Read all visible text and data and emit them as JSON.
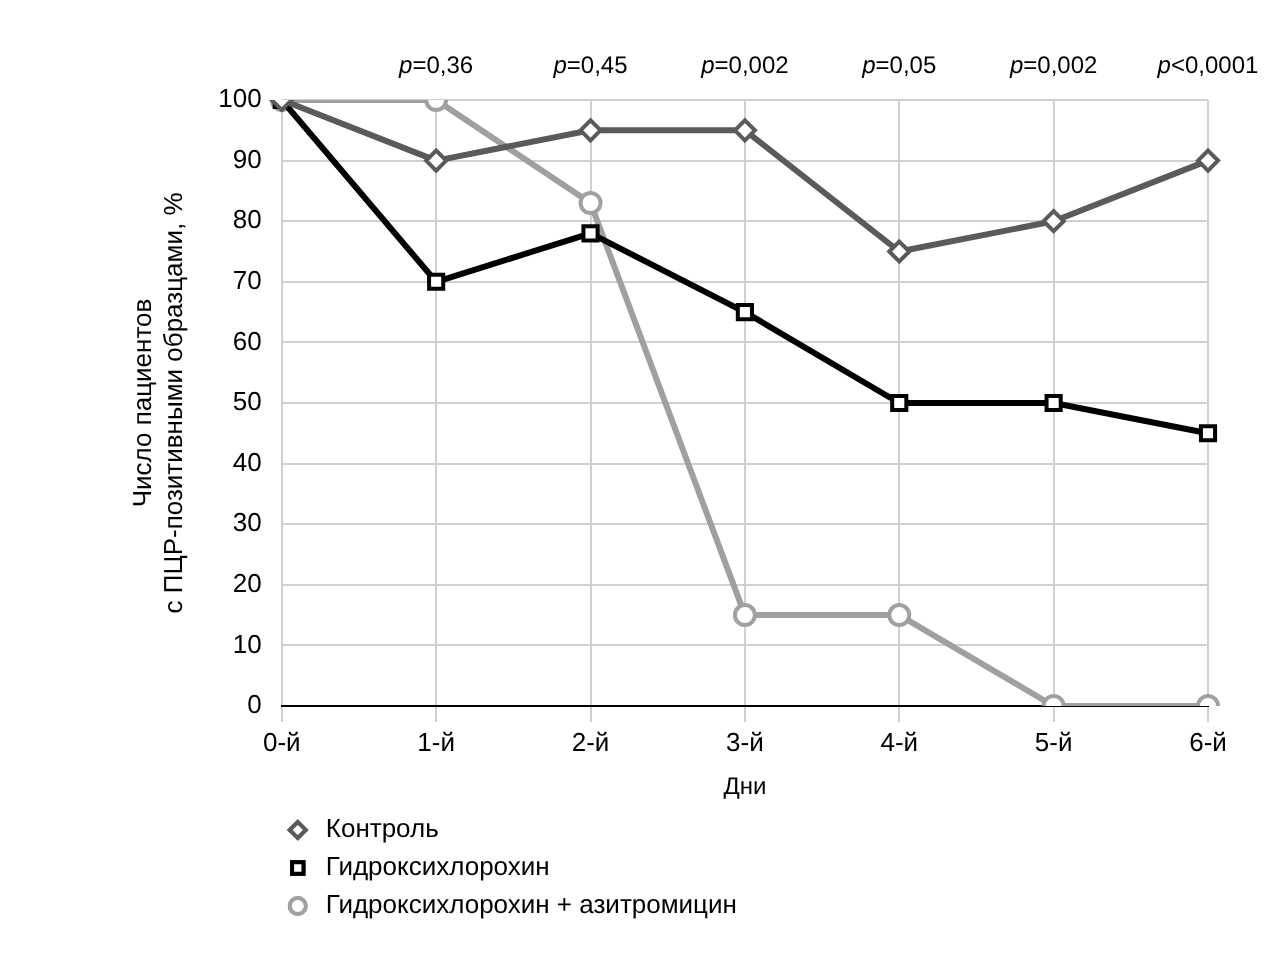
{
  "chart_data": {
    "type": "line",
    "xlabel": "Дни",
    "ylabel": "Число пациентов\nс ПЦР-позитивными образцами, %",
    "categories": [
      "0-й",
      "1-й",
      "2-й",
      "3-й",
      "4-й",
      "5-й",
      "6-й"
    ],
    "series": [
      {
        "name": "Контроль",
        "color": "#5a5a5a",
        "marker": "diamond",
        "values": [
          100,
          90,
          95,
          95,
          75,
          80,
          90
        ]
      },
      {
        "name": "Гидроксихлорохин",
        "color": "#000000",
        "marker": "square",
        "values": [
          100,
          70,
          78,
          65,
          50,
          50,
          45
        ]
      },
      {
        "name": "Гидроксихлорохин + азитромицин",
        "color": "#a0a0a0",
        "marker": "circle",
        "values": [
          100,
          100,
          83,
          15,
          15,
          0,
          0
        ]
      }
    ],
    "ylim": [
      0,
      100
    ],
    "yticks": [
      0,
      10,
      20,
      30,
      40,
      50,
      60,
      70,
      80,
      90,
      100
    ],
    "grid": true,
    "legend": "bottom left",
    "line_style": "solid",
    "annotations": [
      "p=0,36",
      "p=0,45",
      "p=0,002",
      "p=0,05",
      "p=0,002",
      "p<0,0001"
    ]
  }
}
